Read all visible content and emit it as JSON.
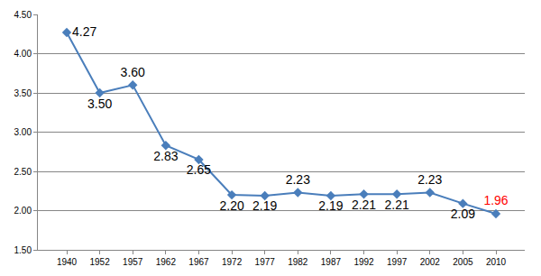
{
  "chart_data": {
    "type": "line",
    "categories": [
      "1940",
      "1952",
      "1957",
      "1962",
      "1967",
      "1972",
      "1977",
      "1982",
      "1987",
      "1992",
      "1997",
      "2002",
      "2005",
      "2010"
    ],
    "values": [
      4.27,
      3.5,
      3.6,
      2.83,
      2.65,
      2.2,
      2.19,
      2.23,
      2.19,
      2.21,
      2.21,
      2.23,
      2.09,
      1.96
    ],
    "value_labels": [
      "4.27",
      "3.50",
      "3.60",
      "2.83",
      "2.65",
      "2.20",
      "2.19",
      "2.23",
      "2.19",
      "2.21",
      "2.21",
      "2.23",
      "2.09",
      "1.96"
    ],
    "color": "#4a7ebb",
    "marker": "diamond",
    "data_labels": true,
    "ylim": [
      1.5,
      4.5
    ],
    "yticks": [
      {
        "value": 1.5,
        "label": "1.50"
      },
      {
        "value": 2.0,
        "label": "2.00"
      },
      {
        "value": 2.5,
        "label": "2.50"
      },
      {
        "value": 3.0,
        "label": "3.00"
      },
      {
        "value": 3.5,
        "label": "3.50"
      },
      {
        "value": 4.0,
        "label": "4.00"
      },
      {
        "value": 4.5,
        "label": "4.50"
      }
    ],
    "grid": true
  }
}
